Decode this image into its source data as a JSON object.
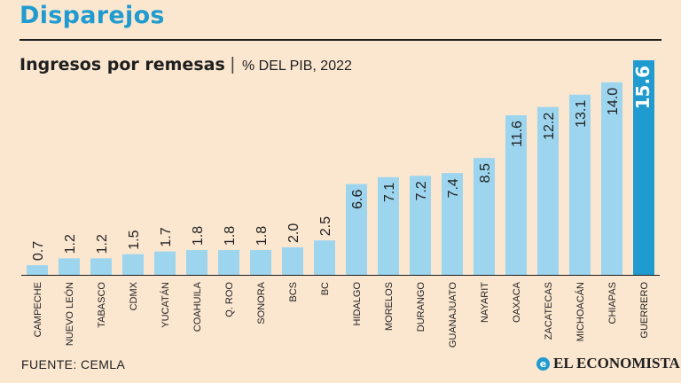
{
  "header": {
    "title": "Disparejos",
    "subtitle": "Ingresos por remesas",
    "unit": "% DEL PIB, 2022"
  },
  "footer": {
    "source": "FUENTE: CEMLA",
    "brand": "EL ECONOMISTA"
  },
  "colors": {
    "bar": "#9dd5ee",
    "highlight": "#1f9bcf",
    "label": "#1f1f1f",
    "highlight_label": "#ffffff"
  },
  "chart_data": {
    "type": "bar",
    "title": "Ingresos por remesas",
    "ylabel": "% DEL PIB, 2022",
    "xlabel": "",
    "ylim": [
      0,
      15.6
    ],
    "grid": false,
    "categories": [
      "CAMPECHE",
      "NUEVO LEÓN",
      "TABASCO",
      "CDMX",
      "YUCATÁN",
      "COAHUILA",
      "Q. ROO",
      "SONORA",
      "BCS",
      "BC",
      "HIDALGO",
      "MORELOS",
      "DURANGO",
      "GUANAJUATO",
      "NAYARIT",
      "OAXACA",
      "ZACATECAS",
      "MICHOACÁN",
      "CHIAPAS",
      "GUERRERO"
    ],
    "values": [
      0.7,
      1.2,
      1.2,
      1.5,
      1.7,
      1.8,
      1.8,
      1.8,
      2.0,
      2.5,
      6.6,
      7.1,
      7.2,
      7.4,
      8.5,
      11.6,
      12.2,
      13.1,
      14.0,
      15.6
    ],
    "value_labels": [
      "0.7",
      "1.2",
      "1.2",
      "1.5",
      "1.7",
      "1.8",
      "1.8",
      "1.8",
      "2.0",
      "2.5",
      "6.6",
      "7.1",
      "7.2",
      "7.4",
      "8.5",
      "11.6",
      "12.2",
      "13.1",
      "14.0",
      "15.6"
    ],
    "highlight": "GUERRERO"
  }
}
